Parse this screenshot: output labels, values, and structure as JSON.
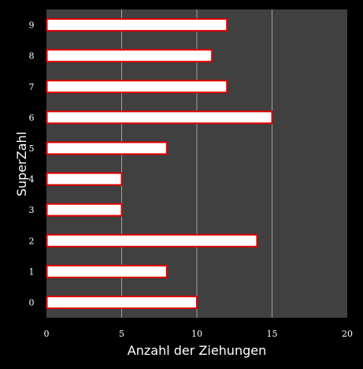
{
  "chart_data": {
    "type": "bar",
    "orientation": "horizontal",
    "categories": [
      "0",
      "1",
      "2",
      "3",
      "4",
      "5",
      "6",
      "7",
      "8",
      "9"
    ],
    "values": [
      10,
      8,
      14,
      5,
      5,
      8,
      15,
      12,
      11,
      12
    ],
    "xlabel": "Anzahl der Ziehungen",
    "ylabel": "SuperZahl",
    "xlim": [
      0,
      20
    ],
    "xticks": [
      "0",
      "5",
      "10",
      "15",
      "20"
    ],
    "grid": true,
    "colors": {
      "background": "#000000",
      "plot_background": "#404040",
      "gridline": "#a0a0a0",
      "bar_fill": "#ffffff",
      "bar_stroke": "#e00000",
      "text": "#ffffff"
    }
  }
}
